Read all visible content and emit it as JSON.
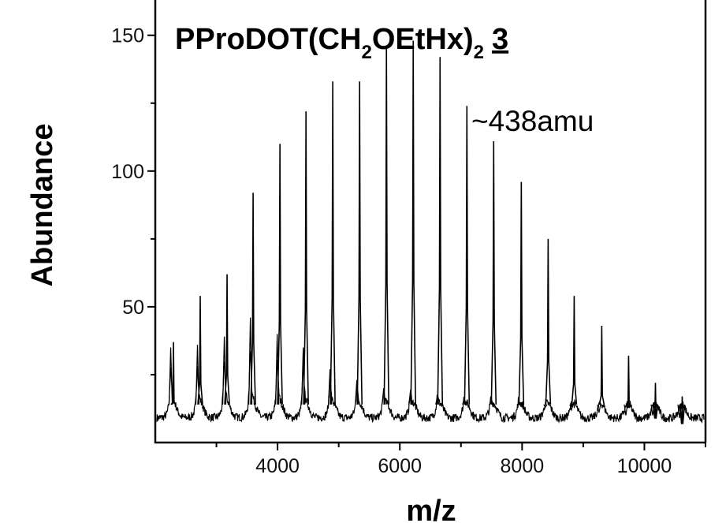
{
  "chart_data": {
    "type": "line",
    "title": {
      "main": "PProDOT(CH",
      "sub1": "2",
      "mid": "OEtHx)",
      "sub2": "2",
      "compound_number": "3"
    },
    "annotation": "~438amu",
    "xlabel": "m/z",
    "ylabel": "Abundance",
    "xlim": [
      2000,
      11000
    ],
    "ylim": [
      0,
      163
    ],
    "x_ticks": [
      4000,
      6000,
      8000,
      10000
    ],
    "x_tick_labels": [
      "4000",
      "6000",
      "8000",
      "10000"
    ],
    "x_minor_ticks": [
      3000,
      5000,
      7000,
      9000,
      11000
    ],
    "y_ticks": [
      50,
      100,
      150
    ],
    "y_tick_labels": [
      "50",
      "100",
      "150"
    ],
    "y_minor_ticks": [
      25,
      75,
      125
    ],
    "grid": false,
    "baseline": 9,
    "repeat_unit_amu": 438,
    "peaks": [
      {
        "mz": 2297,
        "height": 37,
        "shoulder": 35
      },
      {
        "mz": 2735,
        "height": 54,
        "shoulder": 36
      },
      {
        "mz": 3174,
        "height": 62,
        "shoulder": 39
      },
      {
        "mz": 3600,
        "height": 92,
        "shoulder": 46
      },
      {
        "mz": 4039,
        "height": 110,
        "shoulder": 40
      },
      {
        "mz": 4465,
        "height": 122,
        "shoulder": 35
      },
      {
        "mz": 4903,
        "height": 133,
        "shoulder": 27
      },
      {
        "mz": 5342,
        "height": 133,
        "shoulder": 23
      },
      {
        "mz": 5781,
        "height": 146,
        "shoulder": 20
      },
      {
        "mz": 6219,
        "height": 148,
        "shoulder": 19
      },
      {
        "mz": 6658,
        "height": 142,
        "shoulder": 17
      },
      {
        "mz": 7097,
        "height": 124,
        "shoulder": 16
      },
      {
        "mz": 7535,
        "height": 111,
        "shoulder": 15
      },
      {
        "mz": 7987,
        "height": 96,
        "shoulder": 14
      },
      {
        "mz": 8426,
        "height": 75,
        "shoulder": 13
      },
      {
        "mz": 8852,
        "height": 54,
        "shoulder": 12
      },
      {
        "mz": 9303,
        "height": 43,
        "shoulder": 11
      },
      {
        "mz": 9742,
        "height": 32,
        "shoulder": 10
      },
      {
        "mz": 10181,
        "height": 22,
        "shoulder": 10
      },
      {
        "mz": 10619,
        "height": 17,
        "shoulder": 9
      }
    ],
    "color": "#000000"
  }
}
